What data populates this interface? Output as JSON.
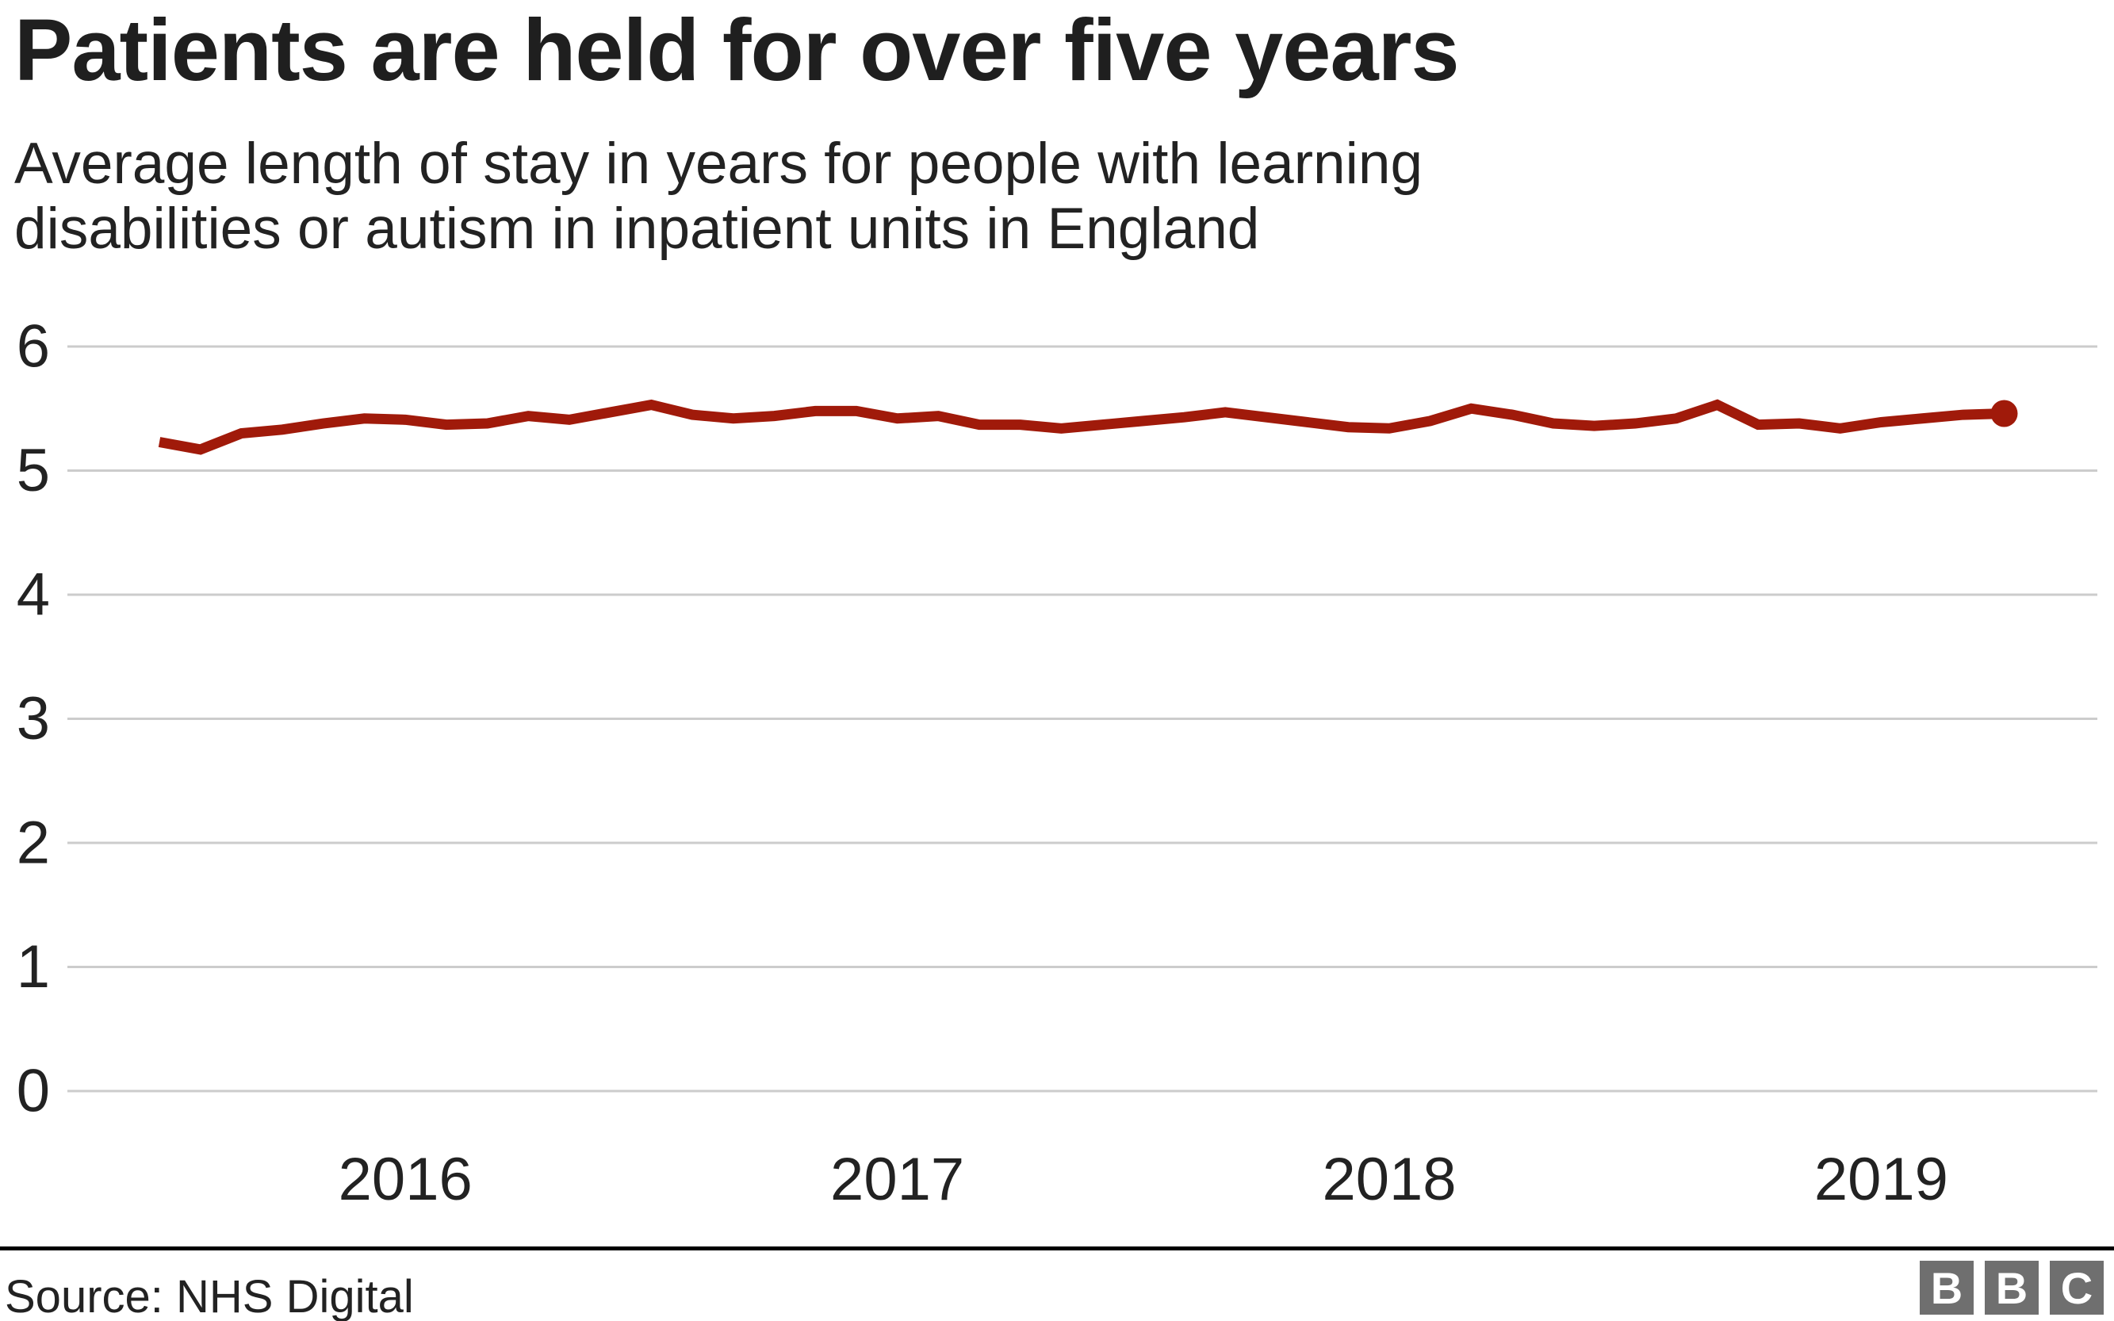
{
  "page": {
    "title": "Patients are held for over five years",
    "subtitle_line1": "Average length of stay in years for people with learning",
    "subtitle_line2": "disabilities or autism in inpatient units in England",
    "source": "Source: NHS Digital",
    "logo_letters": [
      "B",
      "B",
      "C"
    ]
  },
  "colors": {
    "line": "#a01a0a",
    "grid": "#cccccc",
    "text": "#222222",
    "divider": "#000000",
    "logo_bg": "#6f6f6f",
    "logo_text": "#ffffff",
    "background": "#ffffff"
  },
  "chart_data": {
    "type": "line",
    "title": "Patients are held for over five years",
    "subtitle": "Average length of stay in years for people with learning disabilities or autism in inpatient units in England",
    "source": "NHS Digital",
    "xlabel": "",
    "ylabel": "",
    "ylim": [
      0,
      6
    ],
    "yticks": [
      0,
      1,
      2,
      3,
      4,
      5,
      6
    ],
    "xtick_labels": [
      "2016",
      "2017",
      "2018",
      "2019"
    ],
    "grid": true,
    "legend": false,
    "series": [
      {
        "name": "Average length of stay (years)",
        "end_point_marker": true,
        "x": [
          "Jul 2015",
          "Aug 2015",
          "Sep 2015",
          "Oct 2015",
          "Nov 2015",
          "Dec 2015",
          "Jan 2016",
          "Feb 2016",
          "Mar 2016",
          "Apr 2016",
          "May 2016",
          "Jun 2016",
          "Jul 2016",
          "Aug 2016",
          "Sep 2016",
          "Oct 2016",
          "Nov 2016",
          "Dec 2016",
          "Jan 2017",
          "Feb 2017",
          "Mar 2017",
          "Apr 2017",
          "May 2017",
          "Jun 2017",
          "Jul 2017",
          "Aug 2017",
          "Sep 2017",
          "Oct 2017",
          "Nov 2017",
          "Dec 2017",
          "Jan 2018",
          "Feb 2018",
          "Mar 2018",
          "Apr 2018",
          "May 2018",
          "Jun 2018",
          "Jul 2018",
          "Aug 2018",
          "Sep 2018",
          "Oct 2018",
          "Nov 2018",
          "Dec 2018",
          "Jan 2019",
          "Feb 2019",
          "Mar 2019",
          "Apr 2019"
        ],
        "values": [
          5.23,
          5.17,
          5.3,
          5.33,
          5.38,
          5.42,
          5.41,
          5.37,
          5.38,
          5.44,
          5.41,
          5.47,
          5.53,
          5.45,
          5.42,
          5.44,
          5.48,
          5.48,
          5.42,
          5.44,
          5.37,
          5.37,
          5.34,
          5.37,
          5.4,
          5.43,
          5.47,
          5.43,
          5.39,
          5.35,
          5.34,
          5.4,
          5.5,
          5.45,
          5.38,
          5.36,
          5.38,
          5.42,
          5.53,
          5.37,
          5.38,
          5.34,
          5.39,
          5.42,
          5.45,
          5.46
        ]
      }
    ]
  }
}
